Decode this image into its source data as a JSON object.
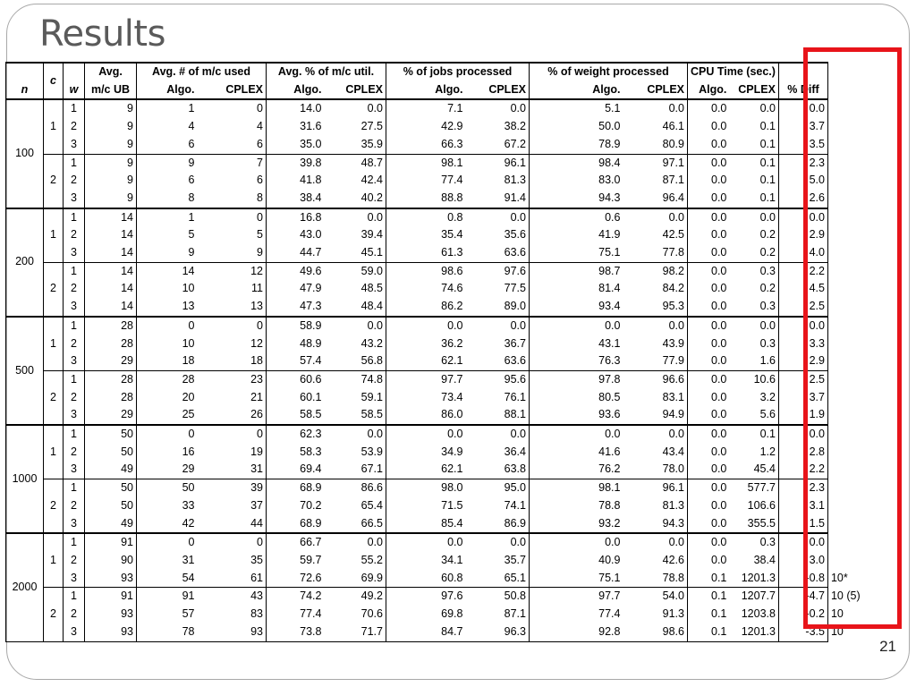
{
  "slide": {
    "title": "Results",
    "page_number": "21",
    "highlight_color": "#e8141a"
  },
  "table": {
    "header": {
      "n": "n",
      "c": "c",
      "w": "w",
      "avg": "Avg.",
      "mc_ub": "m/c UB",
      "mc_used": "Avg. # of m/c used",
      "mc_util": "Avg. % of m/c util.",
      "jobs": "% of jobs processed",
      "weight": "% of weight processed",
      "cpu": "CPU Time (sec.)",
      "algo": "Algo.",
      "cplex": "CPLEX",
      "diff": "% Diff"
    },
    "groups": [
      {
        "n": "100",
        "subs": [
          {
            "c": "1",
            "rows": [
              {
                "w": "1",
                "ub": "9",
                "ua": "1",
                "uc": "0",
                "ta": "14.0",
                "tc": "0.0",
                "ja": "7.1",
                "jc": "0.0",
                "wa": "5.1",
                "wc": "0.0",
                "ca": "0.0",
                "cc": "0.0",
                "d": "0.0",
                "note": ""
              },
              {
                "w": "2",
                "ub": "9",
                "ua": "4",
                "uc": "4",
                "ta": "31.6",
                "tc": "27.5",
                "ja": "42.9",
                "jc": "38.2",
                "wa": "50.0",
                "wc": "46.1",
                "ca": "0.0",
                "cc": "0.1",
                "d": "3.7",
                "note": ""
              },
              {
                "w": "3",
                "ub": "9",
                "ua": "6",
                "uc": "6",
                "ta": "35.0",
                "tc": "35.9",
                "ja": "66.3",
                "jc": "67.2",
                "wa": "78.9",
                "wc": "80.9",
                "ca": "0.0",
                "cc": "0.1",
                "d": "3.5",
                "note": ""
              }
            ]
          },
          {
            "c": "2",
            "rows": [
              {
                "w": "1",
                "ub": "9",
                "ua": "9",
                "uc": "7",
                "ta": "39.8",
                "tc": "48.7",
                "ja": "98.1",
                "jc": "96.1",
                "wa": "98.4",
                "wc": "97.1",
                "ca": "0.0",
                "cc": "0.1",
                "d": "2.3",
                "note": ""
              },
              {
                "w": "2",
                "ub": "9",
                "ua": "6",
                "uc": "6",
                "ta": "41.8",
                "tc": "42.4",
                "ja": "77.4",
                "jc": "81.3",
                "wa": "83.0",
                "wc": "87.1",
                "ca": "0.0",
                "cc": "0.1",
                "d": "5.0",
                "note": ""
              },
              {
                "w": "3",
                "ub": "9",
                "ua": "8",
                "uc": "8",
                "ta": "38.4",
                "tc": "40.2",
                "ja": "88.8",
                "jc": "91.4",
                "wa": "94.3",
                "wc": "96.4",
                "ca": "0.0",
                "cc": "0.1",
                "d": "2.6",
                "note": ""
              }
            ]
          }
        ]
      },
      {
        "n": "200",
        "subs": [
          {
            "c": "1",
            "rows": [
              {
                "w": "1",
                "ub": "14",
                "ua": "1",
                "uc": "0",
                "ta": "16.8",
                "tc": "0.0",
                "ja": "0.8",
                "jc": "0.0",
                "wa": "0.6",
                "wc": "0.0",
                "ca": "0.0",
                "cc": "0.0",
                "d": "0.0",
                "note": ""
              },
              {
                "w": "2",
                "ub": "14",
                "ua": "5",
                "uc": "5",
                "ta": "43.0",
                "tc": "39.4",
                "ja": "35.4",
                "jc": "35.6",
                "wa": "41.9",
                "wc": "42.5",
                "ca": "0.0",
                "cc": "0.2",
                "d": "2.9",
                "note": ""
              },
              {
                "w": "3",
                "ub": "14",
                "ua": "9",
                "uc": "9",
                "ta": "44.7",
                "tc": "45.1",
                "ja": "61.3",
                "jc": "63.6",
                "wa": "75.1",
                "wc": "77.8",
                "ca": "0.0",
                "cc": "0.2",
                "d": "4.0",
                "note": ""
              }
            ]
          },
          {
            "c": "2",
            "rows": [
              {
                "w": "1",
                "ub": "14",
                "ua": "14",
                "uc": "12",
                "ta": "49.6",
                "tc": "59.0",
                "ja": "98.6",
                "jc": "97.6",
                "wa": "98.7",
                "wc": "98.2",
                "ca": "0.0",
                "cc": "0.3",
                "d": "2.2",
                "note": ""
              },
              {
                "w": "2",
                "ub": "14",
                "ua": "10",
                "uc": "11",
                "ta": "47.9",
                "tc": "48.5",
                "ja": "74.6",
                "jc": "77.5",
                "wa": "81.4",
                "wc": "84.2",
                "ca": "0.0",
                "cc": "0.2",
                "d": "4.5",
                "note": ""
              },
              {
                "w": "3",
                "ub": "14",
                "ua": "13",
                "uc": "13",
                "ta": "47.3",
                "tc": "48.4",
                "ja": "86.2",
                "jc": "89.0",
                "wa": "93.4",
                "wc": "95.3",
                "ca": "0.0",
                "cc": "0.3",
                "d": "2.5",
                "note": ""
              }
            ]
          }
        ]
      },
      {
        "n": "500",
        "subs": [
          {
            "c": "1",
            "rows": [
              {
                "w": "1",
                "ub": "28",
                "ua": "0",
                "uc": "0",
                "ta": "58.9",
                "tc": "0.0",
                "ja": "0.0",
                "jc": "0.0",
                "wa": "0.0",
                "wc": "0.0",
                "ca": "0.0",
                "cc": "0.0",
                "d": "0.0",
                "note": ""
              },
              {
                "w": "2",
                "ub": "28",
                "ua": "10",
                "uc": "12",
                "ta": "48.9",
                "tc": "43.2",
                "ja": "36.2",
                "jc": "36.7",
                "wa": "43.1",
                "wc": "43.9",
                "ca": "0.0",
                "cc": "0.3",
                "d": "3.3",
                "note": ""
              },
              {
                "w": "3",
                "ub": "29",
                "ua": "18",
                "uc": "18",
                "ta": "57.4",
                "tc": "56.8",
                "ja": "62.1",
                "jc": "63.6",
                "wa": "76.3",
                "wc": "77.9",
                "ca": "0.0",
                "cc": "1.6",
                "d": "2.9",
                "note": ""
              }
            ]
          },
          {
            "c": "2",
            "rows": [
              {
                "w": "1",
                "ub": "28",
                "ua": "28",
                "uc": "23",
                "ta": "60.6",
                "tc": "74.8",
                "ja": "97.7",
                "jc": "95.6",
                "wa": "97.8",
                "wc": "96.6",
                "ca": "0.0",
                "cc": "10.6",
                "d": "2.5",
                "note": ""
              },
              {
                "w": "2",
                "ub": "28",
                "ua": "20",
                "uc": "21",
                "ta": "60.1",
                "tc": "59.1",
                "ja": "73.4",
                "jc": "76.1",
                "wa": "80.5",
                "wc": "83.1",
                "ca": "0.0",
                "cc": "3.2",
                "d": "3.7",
                "note": ""
              },
              {
                "w": "3",
                "ub": "29",
                "ua": "25",
                "uc": "26",
                "ta": "58.5",
                "tc": "58.5",
                "ja": "86.0",
                "jc": "88.1",
                "wa": "93.6",
                "wc": "94.9",
                "ca": "0.0",
                "cc": "5.6",
                "d": "1.9",
                "note": ""
              }
            ]
          }
        ]
      },
      {
        "n": "1000",
        "subs": [
          {
            "c": "1",
            "rows": [
              {
                "w": "1",
                "ub": "50",
                "ua": "0",
                "uc": "0",
                "ta": "62.3",
                "tc": "0.0",
                "ja": "0.0",
                "jc": "0.0",
                "wa": "0.0",
                "wc": "0.0",
                "ca": "0.0",
                "cc": "0.1",
                "d": "0.0",
                "note": ""
              },
              {
                "w": "2",
                "ub": "50",
                "ua": "16",
                "uc": "19",
                "ta": "58.3",
                "tc": "53.9",
                "ja": "34.9",
                "jc": "36.4",
                "wa": "41.6",
                "wc": "43.4",
                "ca": "0.0",
                "cc": "1.2",
                "d": "2.8",
                "note": ""
              },
              {
                "w": "3",
                "ub": "49",
                "ua": "29",
                "uc": "31",
                "ta": "69.4",
                "tc": "67.1",
                "ja": "62.1",
                "jc": "63.8",
                "wa": "76.2",
                "wc": "78.0",
                "ca": "0.0",
                "cc": "45.4",
                "d": "2.2",
                "note": ""
              }
            ]
          },
          {
            "c": "2",
            "rows": [
              {
                "w": "1",
                "ub": "50",
                "ua": "50",
                "uc": "39",
                "ta": "68.9",
                "tc": "86.6",
                "ja": "98.0",
                "jc": "95.0",
                "wa": "98.1",
                "wc": "96.1",
                "ca": "0.0",
                "cc": "577.7",
                "d": "2.3",
                "note": ""
              },
              {
                "w": "2",
                "ub": "50",
                "ua": "33",
                "uc": "37",
                "ta": "70.2",
                "tc": "65.4",
                "ja": "71.5",
                "jc": "74.1",
                "wa": "78.8",
                "wc": "81.3",
                "ca": "0.0",
                "cc": "106.6",
                "d": "3.1",
                "note": ""
              },
              {
                "w": "3",
                "ub": "49",
                "ua": "42",
                "uc": "44",
                "ta": "68.9",
                "tc": "66.5",
                "ja": "85.4",
                "jc": "86.9",
                "wa": "93.2",
                "wc": "94.3",
                "ca": "0.0",
                "cc": "355.5",
                "d": "1.5",
                "note": ""
              }
            ]
          }
        ]
      },
      {
        "n": "2000",
        "subs": [
          {
            "c": "1",
            "rows": [
              {
                "w": "1",
                "ub": "91",
                "ua": "0",
                "uc": "0",
                "ta": "66.7",
                "tc": "0.0",
                "ja": "0.0",
                "jc": "0.0",
                "wa": "0.0",
                "wc": "0.0",
                "ca": "0.0",
                "cc": "0.3",
                "d": "0.0",
                "note": ""
              },
              {
                "w": "2",
                "ub": "90",
                "ua": "31",
                "uc": "35",
                "ta": "59.7",
                "tc": "55.2",
                "ja": "34.1",
                "jc": "35.7",
                "wa": "40.9",
                "wc": "42.6",
                "ca": "0.0",
                "cc": "38.4",
                "d": "3.0",
                "note": ""
              },
              {
                "w": "3",
                "ub": "93",
                "ua": "54",
                "uc": "61",
                "ta": "72.6",
                "tc": "69.9",
                "ja": "60.8",
                "jc": "65.1",
                "wa": "75.1",
                "wc": "78.8",
                "ca": "0.1",
                "cc": "1201.3",
                "d": "-0.8",
                "note": "10*"
              }
            ]
          },
          {
            "c": "2",
            "rows": [
              {
                "w": "1",
                "ub": "91",
                "ua": "91",
                "uc": "43",
                "ta": "74.2",
                "tc": "49.2",
                "ja": "97.6",
                "jc": "50.8",
                "wa": "97.7",
                "wc": "54.0",
                "ca": "0.1",
                "cc": "1207.7",
                "d": "-4.7",
                "note": "10 (5)"
              },
              {
                "w": "2",
                "ub": "93",
                "ua": "57",
                "uc": "83",
                "ta": "77.4",
                "tc": "70.6",
                "ja": "69.8",
                "jc": "87.1",
                "wa": "77.4",
                "wc": "91.3",
                "ca": "0.1",
                "cc": "1203.8",
                "d": "-0.2",
                "note": "10"
              },
              {
                "w": "3",
                "ub": "93",
                "ua": "78",
                "uc": "93",
                "ta": "73.8",
                "tc": "71.7",
                "ja": "84.7",
                "jc": "96.3",
                "wa": "92.8",
                "wc": "98.6",
                "ca": "0.1",
                "cc": "1201.3",
                "d": "-3.5",
                "note": "10"
              }
            ]
          }
        ]
      }
    ]
  }
}
